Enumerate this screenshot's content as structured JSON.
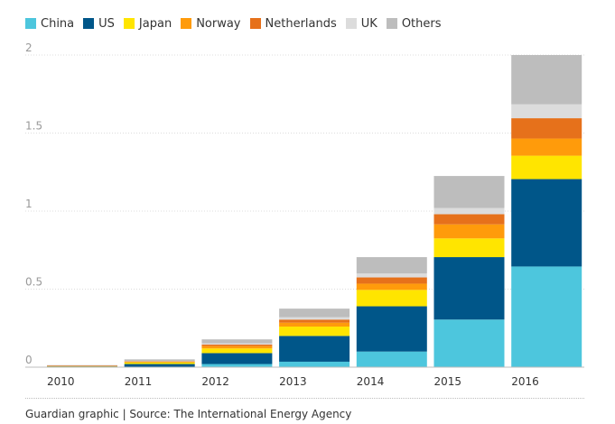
{
  "chart_data": {
    "type": "bar",
    "stacked": true,
    "categories": [
      "2010",
      "2011",
      "2012",
      "2013",
      "2014",
      "2015",
      "2016"
    ],
    "series": [
      {
        "name": "China",
        "color": "#4dc6dd",
        "values": [
          0.0,
          0.0,
          0.02,
          0.035,
          0.1,
          0.305,
          0.645
        ]
      },
      {
        "name": "US",
        "color": "#005689",
        "values": [
          0.005,
          0.02,
          0.07,
          0.165,
          0.29,
          0.4,
          0.56
        ]
      },
      {
        "name": "Japan",
        "color": "#ffe500",
        "values": [
          0.003,
          0.01,
          0.03,
          0.06,
          0.105,
          0.12,
          0.15
        ]
      },
      {
        "name": "Norway",
        "color": "#ff9b0b",
        "values": [
          0.001,
          0.005,
          0.015,
          0.025,
          0.04,
          0.09,
          0.11
        ]
      },
      {
        "name": "Netherlands",
        "color": "#e6711b",
        "values": [
          0.001,
          0.003,
          0.01,
          0.02,
          0.04,
          0.065,
          0.13
        ]
      },
      {
        "name": "UK",
        "color": "#dcdcdc",
        "values": [
          0.0,
          0.002,
          0.008,
          0.015,
          0.025,
          0.04,
          0.09
        ]
      },
      {
        "name": "Others",
        "color": "#bdbdbd",
        "values": [
          0.003,
          0.01,
          0.025,
          0.055,
          0.105,
          0.205,
          0.315
        ]
      }
    ],
    "ylim": [
      0,
      2
    ],
    "yticks": [
      "0",
      "0.5",
      "1",
      "1.5",
      "2"
    ],
    "ytick_values": [
      0,
      0.5,
      1,
      1.5,
      2
    ],
    "legend": "top-left",
    "grid": true
  },
  "footer": {
    "source": "Guardian graphic | Source: The International Energy Agency"
  }
}
